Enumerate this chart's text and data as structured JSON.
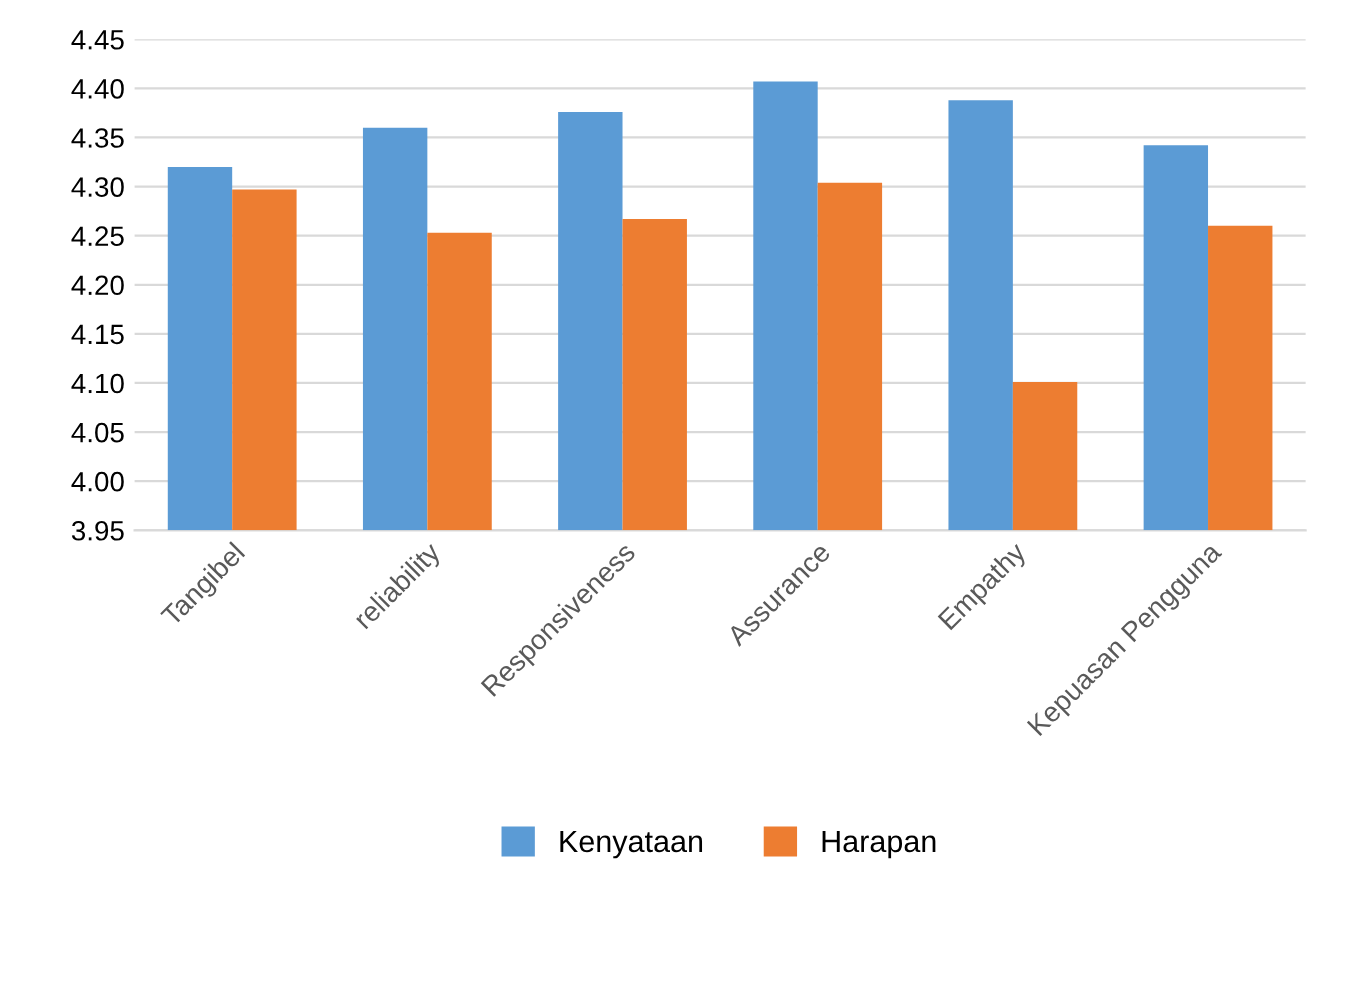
{
  "chart_data": {
    "type": "bar",
    "categories": [
      "Tangibel",
      "reliability",
      "Responsiveness",
      "Assurance",
      "Empathy",
      "Kepuasan Pengguna"
    ],
    "series": [
      {
        "name": "Kenyataan",
        "color": "#5b9bd5",
        "values": [
          4.32,
          4.36,
          4.376,
          4.407,
          4.388,
          4.342
        ]
      },
      {
        "name": "Harapan",
        "color": "#ed7d31",
        "values": [
          4.297,
          4.253,
          4.267,
          4.304,
          4.101,
          4.26
        ]
      }
    ],
    "ylim": [
      3.95,
      4.45
    ],
    "yticks": [
      {
        "value": 3.95,
        "label": "3.95"
      },
      {
        "value": 4.0,
        "label": "4.00"
      },
      {
        "value": 4.05,
        "label": "4.05"
      },
      {
        "value": 4.1,
        "label": "4.10"
      },
      {
        "value": 4.15,
        "label": "4.15"
      },
      {
        "value": 4.2,
        "label": "4.20"
      },
      {
        "value": 4.25,
        "label": "4.25"
      },
      {
        "value": 4.3,
        "label": "4.30"
      },
      {
        "value": 4.35,
        "label": "4.35"
      },
      {
        "value": 4.4,
        "label": "4.40"
      },
      {
        "value": 4.45,
        "label": "4.45"
      }
    ],
    "grid": "y",
    "legend": "bottom"
  }
}
